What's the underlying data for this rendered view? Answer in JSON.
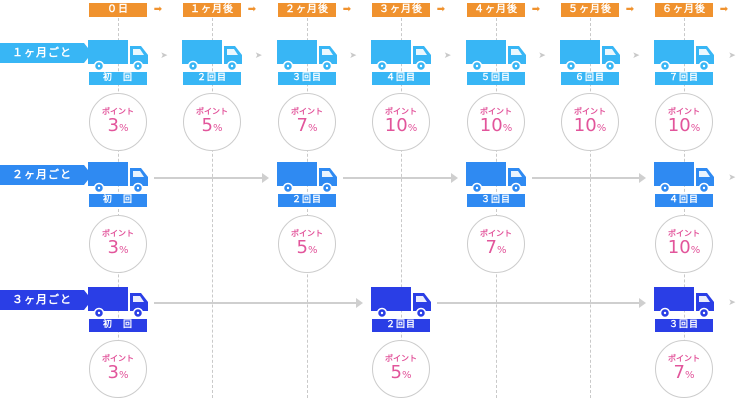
{
  "timeline": [
    "０日",
    "１ヶ月後",
    "２ヶ月後",
    "３ヶ月後",
    "４ヶ月後",
    "５ヶ月後",
    "６ヶ月後"
  ],
  "point_label": "ポイント",
  "percent_unit": "%",
  "rows": [
    {
      "label": "１ヶ月ごと",
      "color": "#38b6f5",
      "deliveries": [
        {
          "col": 0,
          "label": "初　回",
          "points": "3"
        },
        {
          "col": 1,
          "label": "２回目",
          "points": "5"
        },
        {
          "col": 2,
          "label": "３回目",
          "points": "7"
        },
        {
          "col": 3,
          "label": "４回目",
          "points": "10"
        },
        {
          "col": 4,
          "label": "５回目",
          "points": "10"
        },
        {
          "col": 5,
          "label": "６回目",
          "points": "10"
        },
        {
          "col": 6,
          "label": "７回目",
          "points": "10"
        }
      ]
    },
    {
      "label": "２ヶ月ごと",
      "color": "#2f8af2",
      "deliveries": [
        {
          "col": 0,
          "label": "初　回",
          "points": "3"
        },
        {
          "col": 2,
          "label": "２回目",
          "points": "5"
        },
        {
          "col": 4,
          "label": "３回目",
          "points": "7"
        },
        {
          "col": 6,
          "label": "４回目",
          "points": "10"
        }
      ]
    },
    {
      "label": "３ヶ月ごと",
      "color": "#2a3ee6",
      "deliveries": [
        {
          "col": 0,
          "label": "初　回",
          "points": "3"
        },
        {
          "col": 3,
          "label": "２回目",
          "points": "5"
        },
        {
          "col": 6,
          "label": "３回目",
          "points": "7"
        }
      ]
    }
  ],
  "colors": {
    "timeline_bg": "#f0922e",
    "point_text": "#e2559b",
    "connector": "#cfcfcf",
    "circle_border": "#cccccc"
  },
  "icons": [
    "truck-icon",
    "right-arrow-icon"
  ]
}
